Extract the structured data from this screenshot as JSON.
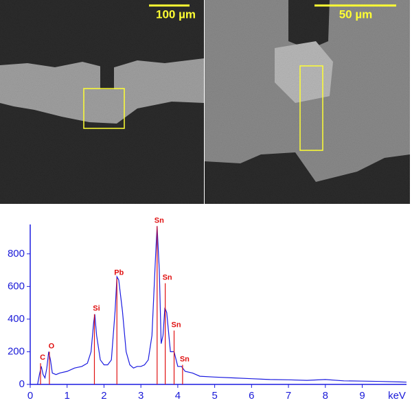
{
  "images": [
    {
      "scale_label": "100 µm"
    },
    {
      "scale_label": "50 µm"
    }
  ],
  "chart_data": {
    "type": "line",
    "x_label": "keV",
    "xlim": [
      0,
      10.2
    ],
    "xticks": [
      0,
      1,
      2,
      3,
      4,
      5,
      6,
      7,
      8,
      9
    ],
    "ylim": [
      0,
      980
    ],
    "yticks": [
      0,
      200,
      400,
      600,
      800
    ],
    "x": [
      0.2,
      0.25,
      0.3,
      0.35,
      0.4,
      0.45,
      0.5,
      0.55,
      0.6,
      0.7,
      0.8,
      1.0,
      1.2,
      1.4,
      1.55,
      1.65,
      1.72,
      1.75,
      1.8,
      1.9,
      2.0,
      2.1,
      2.2,
      2.3,
      2.35,
      2.4,
      2.5,
      2.6,
      2.7,
      2.8,
      2.9,
      3.0,
      3.1,
      3.2,
      3.3,
      3.4,
      3.44,
      3.5,
      3.55,
      3.6,
      3.65,
      3.7,
      3.8,
      3.9,
      4.0,
      4.1,
      4.2,
      4.4,
      4.6,
      5.0,
      5.5,
      6.0,
      6.5,
      7.0,
      7.5,
      8.0,
      8.5,
      9.0,
      9.5,
      10.0,
      10.2
    ],
    "series": [
      {
        "color": "#1a1ae0",
        "values": [
          0,
          60,
          110,
          60,
          40,
          100,
          200,
          150,
          70,
          60,
          70,
          80,
          100,
          110,
          130,
          200,
          380,
          430,
          300,
          150,
          120,
          120,
          150,
          450,
          660,
          640,
          450,
          200,
          120,
          100,
          110,
          110,
          120,
          150,
          300,
          800,
          970,
          700,
          250,
          300,
          470,
          440,
          200,
          200,
          110,
          110,
          80,
          70,
          50,
          45,
          40,
          35,
          30,
          28,
          25,
          30,
          22,
          20,
          18,
          15,
          14
        ]
      }
    ],
    "peaks": {
      "color": "#e01010",
      "labels": [
        "C",
        "O",
        "Si",
        "Pb",
        "Sn",
        "Sn",
        "Sn",
        "Sn"
      ],
      "x": [
        0.28,
        0.52,
        1.74,
        2.35,
        3.44,
        3.66,
        3.9,
        4.13
      ],
      "heights": [
        130,
        200,
        430,
        650,
        970,
        620,
        330,
        120
      ]
    }
  }
}
